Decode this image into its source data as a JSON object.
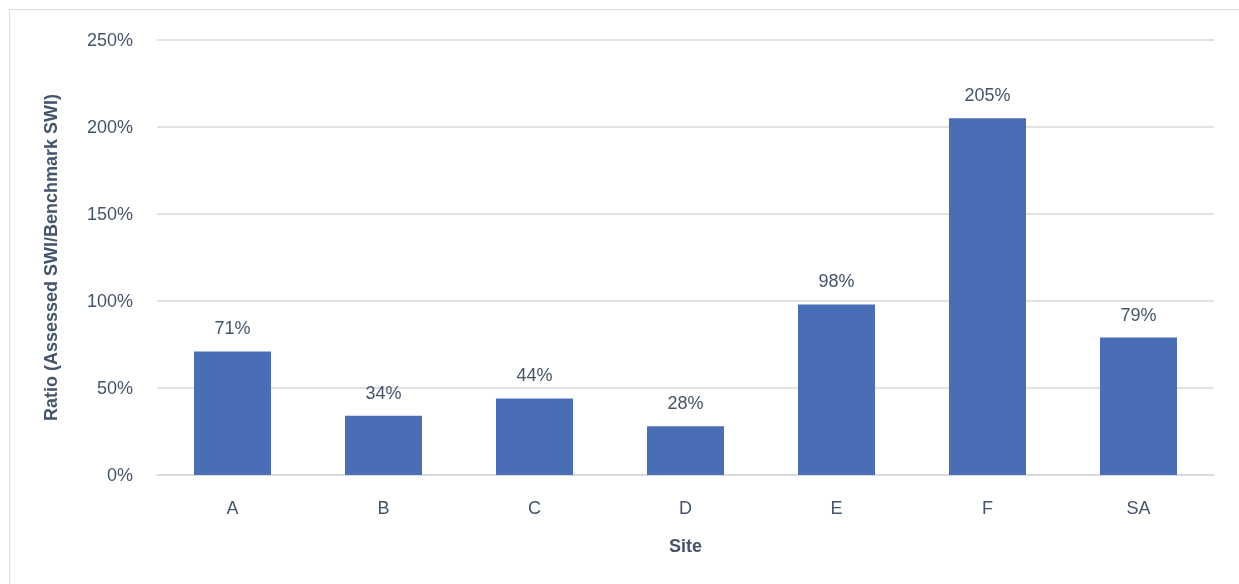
{
  "chart_data": {
    "type": "bar",
    "xlabel": "Site",
    "ylabel": "Ratio (Assessed SWI/Benchmark SWI)",
    "categories": [
      "A",
      "B",
      "C",
      "D",
      "E",
      "F",
      "SA"
    ],
    "values": [
      71,
      34,
      44,
      28,
      98,
      205,
      79
    ],
    "value_labels": [
      "71%",
      "34%",
      "44%",
      "28%",
      "98%",
      "205%",
      "79%"
    ],
    "color": "#4a6eb6",
    "ylim": [
      0,
      250
    ],
    "yticks": [
      {
        "value": 0,
        "label": "0%"
      },
      {
        "value": 50,
        "label": "50%"
      },
      {
        "value": 100,
        "label": "100%"
      },
      {
        "value": 150,
        "label": "150%"
      },
      {
        "value": 200,
        "label": "200%"
      },
      {
        "value": 250,
        "label": "250%"
      }
    ],
    "grid": "y"
  }
}
